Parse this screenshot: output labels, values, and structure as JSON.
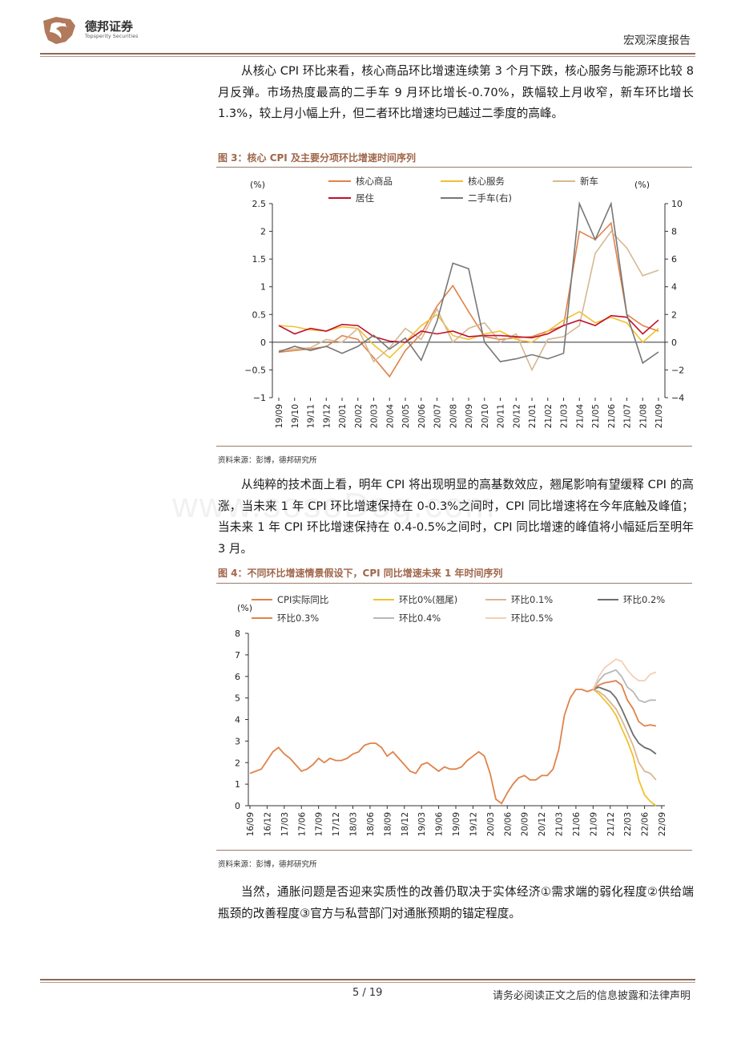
{
  "header": {
    "company_name": "德邦证券",
    "company_name_en": "Topsperity Securities",
    "report_type": "宏观深度报告"
  },
  "watermark": "www.sosoDog.com",
  "paragraphs": [
    "从核心 CPI 环比来看，核心商品环比增速连续第 3 个月下跌，核心服务与能源环比较 8 月反弹。市场热度最高的二手车 9 月环比增长-0.70%，跌幅较上月收窄，新车环比增长 1.3%，较上月小幅上升，但二者环比增速均已越过二季度的高峰。",
    "从纯粹的技术面上看，明年 CPI 将出现明显的高基数效应，翘尾影响有望缓释 CPI 的高涨，当未来 1 年 CPI 环比增速保持在 0-0.3%之间时，CPI 同比增速将在今年底触及峰值；当未来 1 年 CPI 环比增速保持在 0.4-0.5%之间时，CPI 同比增速的峰值将小幅延后至明年 3 月。",
    "当然，通胀问题是否迎来实质性的改善仍取决于实体经济①需求端的弱化程度②供给端瓶颈的改善程度③官方与私营部门对通胀预期的锚定程度。"
  ],
  "figures": [
    {
      "title": "图 3：核心 CPI 及主要分项环比增速时间序列",
      "source": "资料来源：彭博，德邦研究所"
    },
    {
      "title": "图 4：不同环比增速情景假设下，CPI 同比增速未来 1 年时间序列",
      "source": "资料来源：彭博，德邦研究所"
    }
  ],
  "footer": {
    "page": "5 / 19",
    "disclaimer": "请务必阅读正文之后的信息披露和法律声明"
  },
  "chart_data": [
    {
      "type": "line",
      "y_left_label": "(%)",
      "y_right_label": "(%)",
      "ylim_left": [
        -1,
        2.5
      ],
      "ylim_right": [
        -4,
        10
      ],
      "yticks_left": [
        "2.5",
        "2",
        "1.5",
        "1",
        "0.5",
        "0",
        "−0.5",
        "−1"
      ],
      "yticks_right": [
        "10",
        "8",
        "6",
        "4",
        "2",
        "0",
        "−2",
        "−4"
      ],
      "x": [
        "19/09",
        "19/10",
        "19/11",
        "19/12",
        "20/01",
        "20/02",
        "20/03",
        "20/04",
        "20/05",
        "20/06",
        "20/07",
        "20/08",
        "20/09",
        "20/10",
        "20/11",
        "20/12",
        "21/01",
        "21/02",
        "21/03",
        "21/04",
        "21/05",
        "21/06",
        "21/07",
        "21/08",
        "21/09"
      ],
      "grid": false,
      "legend": "top",
      "series": [
        {
          "name": "核心商品",
          "axis": "left",
          "color": "#e0824a",
          "values": [
            -0.18,
            -0.15,
            -0.12,
            -0.08,
            0.12,
            0.05,
            -0.28,
            -0.62,
            -0.15,
            0.15,
            0.65,
            1.02,
            0.55,
            0.1,
            0.05,
            0.08,
            0.1,
            0.2,
            0.3,
            2.0,
            1.85,
            2.15,
            0.5,
            0.3,
            0.2
          ]
        },
        {
          "name": "核心服务",
          "axis": "left",
          "color": "#f2c12e",
          "values": [
            0.3,
            0.28,
            0.22,
            0.2,
            0.28,
            0.25,
            -0.05,
            -0.28,
            0.0,
            0.3,
            0.5,
            0.12,
            0.05,
            0.15,
            0.2,
            0.05,
            0.0,
            0.2,
            0.4,
            0.55,
            0.35,
            0.45,
            0.35,
            0.0,
            0.25
          ]
        },
        {
          "name": "新车",
          "axis": "left",
          "color": "#d7b892",
          "values": [
            -0.15,
            -0.12,
            -0.1,
            0.05,
            0.0,
            0.25,
            -0.35,
            -0.1,
            0.25,
            0.05,
            0.6,
            0.0,
            0.25,
            0.35,
            0.0,
            0.15,
            -0.5,
            0.05,
            0.1,
            0.3,
            1.6,
            2.0,
            1.7,
            1.2,
            1.3
          ]
        },
        {
          "name": "居住",
          "axis": "left",
          "color": "#c0102a",
          "values": [
            0.3,
            0.15,
            0.25,
            0.2,
            0.32,
            0.3,
            0.1,
            0.02,
            0.0,
            0.2,
            0.15,
            0.2,
            0.1,
            0.12,
            0.12,
            0.1,
            0.08,
            0.15,
            0.3,
            0.4,
            0.3,
            0.48,
            0.45,
            0.15,
            0.4
          ]
        },
        {
          "name": "二手车(右)",
          "axis": "right",
          "color": "#777777",
          "values": [
            -0.7,
            -0.3,
            -0.6,
            -0.3,
            -0.8,
            -0.3,
            0.5,
            -0.5,
            0.3,
            -1.3,
            1.5,
            5.7,
            5.3,
            0.0,
            -1.4,
            -1.2,
            -0.9,
            -1.2,
            -0.8,
            10.0,
            7.4,
            10.0,
            2.0,
            -1.5,
            -0.7
          ]
        }
      ]
    },
    {
      "type": "line",
      "y_label": "(%)",
      "ylim": [
        0,
        8
      ],
      "yticks": [
        "8",
        "7",
        "6",
        "5",
        "4",
        "3",
        "2",
        "1",
        "0"
      ],
      "x_ticks": [
        "16/09",
        "16/12",
        "17/03",
        "17/06",
        "17/09",
        "17/12",
        "18/03",
        "18/06",
        "18/09",
        "18/12",
        "19/03",
        "19/06",
        "19/09",
        "19/12",
        "20/03",
        "20/06",
        "20/09",
        "20/12",
        "21/03",
        "21/06",
        "21/09",
        "21/12",
        "22/03",
        "22/06",
        "22/09"
      ],
      "grid": false,
      "legend": "top",
      "series": [
        {
          "name": "CPI实际同比",
          "color": "#e0824a",
          "values": [
            1.5,
            1.6,
            1.7,
            2.1,
            2.5,
            2.7,
            2.4,
            2.2,
            1.9,
            1.6,
            1.7,
            1.9,
            2.2,
            2.0,
            2.2,
            2.1,
            2.1,
            2.2,
            2.4,
            2.5,
            2.8,
            2.9,
            2.9,
            2.7,
            2.3,
            2.5,
            2.2,
            1.9,
            1.6,
            1.5,
            1.9,
            2.0,
            1.8,
            1.6,
            1.8,
            1.7,
            1.7,
            1.8,
            2.1,
            2.3,
            2.5,
            2.3,
            1.5,
            0.3,
            0.1,
            0.6,
            1.0,
            1.3,
            1.4,
            1.2,
            1.2,
            1.4,
            1.4,
            1.7,
            2.6,
            4.2,
            5.0,
            5.4,
            5.4,
            5.3,
            5.4
          ]
        },
        {
          "name": "环比0%(翘尾)",
          "color": "#f2c12e",
          "start_index": 60,
          "values": [
            5.4,
            5.2,
            4.9,
            4.6,
            4.2,
            3.6,
            3.0,
            2.3,
            1.2,
            0.5,
            0.2,
            0.0
          ]
        },
        {
          "name": "环比0.1%",
          "color": "#d7b892",
          "start_index": 60,
          "values": [
            5.4,
            5.3,
            5.1,
            4.8,
            4.5,
            4.0,
            3.4,
            2.8,
            2.0,
            1.6,
            1.5,
            1.2
          ]
        },
        {
          "name": "环比0.2%",
          "color": "#6e6e6e",
          "start_index": 60,
          "values": [
            5.4,
            5.5,
            5.4,
            5.3,
            5.0,
            4.5,
            3.9,
            3.3,
            2.9,
            2.7,
            2.6,
            2.4
          ]
        },
        {
          "name": "环比0.3%",
          "color": "#e0824a",
          "start_index": 60,
          "values": [
            5.4,
            5.6,
            5.7,
            5.75,
            5.8,
            5.6,
            4.9,
            4.5,
            3.9,
            3.7,
            3.75,
            3.7
          ]
        },
        {
          "name": "环比0.4%",
          "color": "#b8b8b8",
          "start_index": 60,
          "values": [
            5.4,
            5.8,
            6.1,
            6.2,
            6.3,
            6.0,
            5.5,
            5.3,
            4.9,
            4.8,
            4.9,
            4.9
          ]
        },
        {
          "name": "环比0.5%",
          "color": "#f4cfb5",
          "start_index": 60,
          "values": [
            5.4,
            6.0,
            6.4,
            6.6,
            6.8,
            6.7,
            6.3,
            6.0,
            5.8,
            5.8,
            6.1,
            6.2
          ]
        }
      ]
    }
  ]
}
